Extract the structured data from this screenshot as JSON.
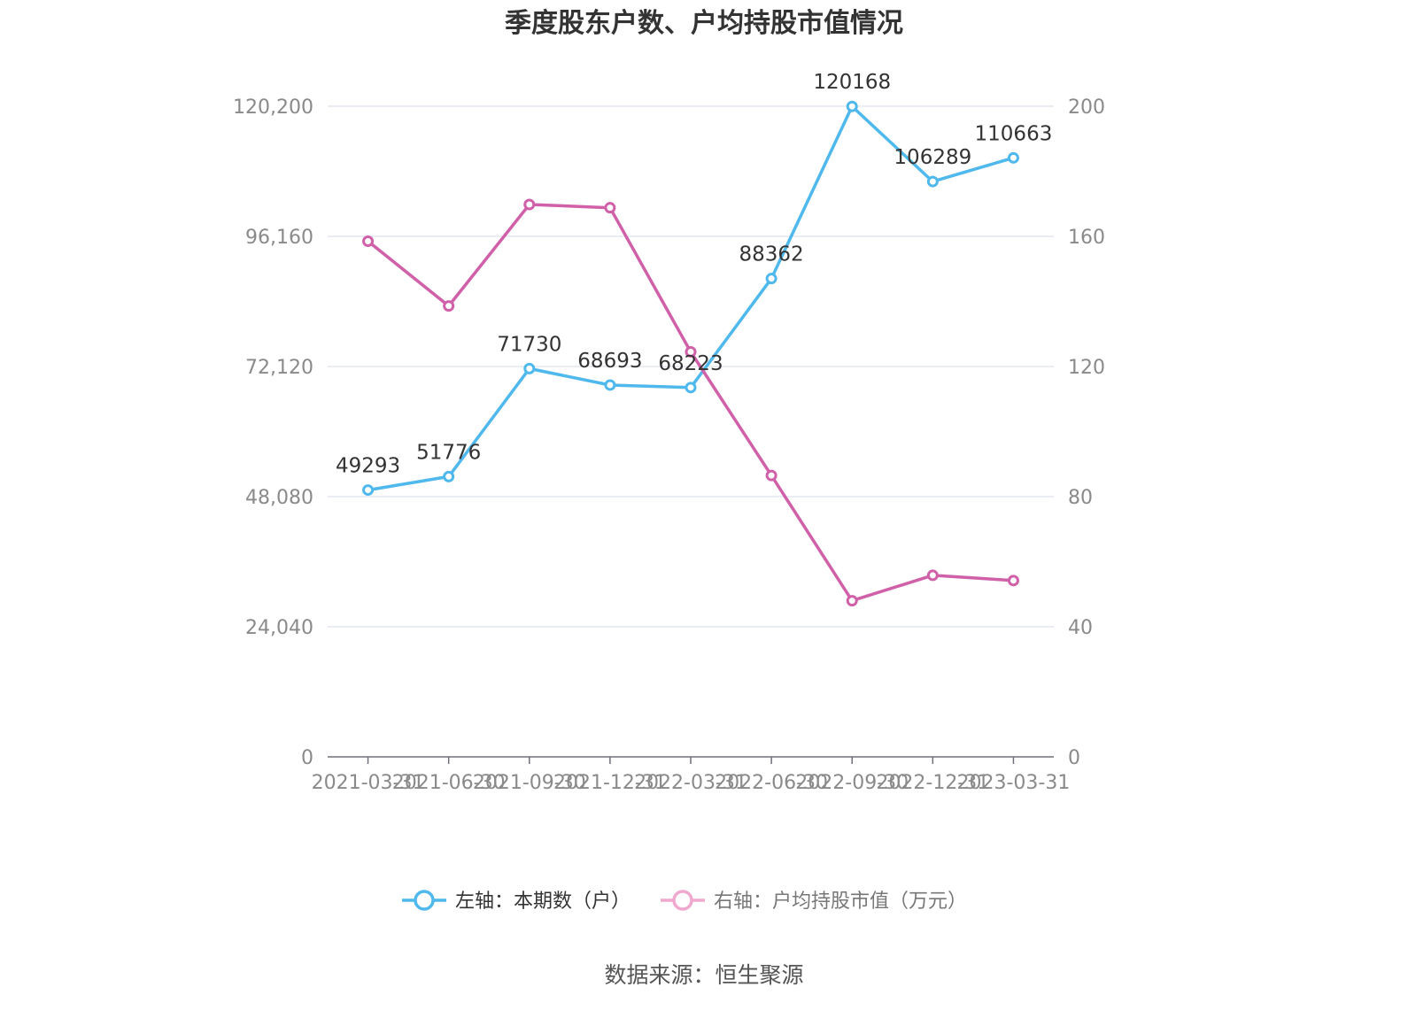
{
  "chart_data": {
    "type": "line",
    "title": "季度股东户数、户均持股市值情况",
    "categories": [
      "2021-03-31",
      "2021-06-30",
      "2021-09-30",
      "2021-12-31",
      "2022-03-31",
      "2022-06-30",
      "2022-09-30",
      "2022-12-31",
      "2023-03-31"
    ],
    "series": [
      {
        "name": "左轴：本期数（户）",
        "axis": "left",
        "color": "#4fb8ec",
        "values": [
          49293,
          51776,
          71730,
          68693,
          68223,
          88362,
          120168,
          106289,
          110663
        ],
        "labels": [
          "49293",
          "51776",
          "71730",
          "68693",
          "68223",
          "88362",
          "120168",
          "106289",
          "110663"
        ]
      },
      {
        "name": "右轴：户均持股市值（万元）",
        "axis": "right",
        "color": "#d060a8",
        "legend_color": "#f0a8cf",
        "values": [
          158.5,
          138.6,
          169.8,
          168.8,
          124.5,
          86.5,
          48.0,
          55.8,
          54.2
        ]
      }
    ],
    "y_left": {
      "ylim": [
        0,
        120200
      ],
      "ticks": [
        "0",
        "24,040",
        "48,080",
        "72,120",
        "96,160",
        "120,200"
      ]
    },
    "y_right": {
      "ylim": [
        0,
        200
      ],
      "ticks": [
        "0",
        "40",
        "80",
        "120",
        "160",
        "200"
      ]
    },
    "grid": true,
    "legend_position": "bottom"
  },
  "source_text": "数据来源：恒生聚源"
}
